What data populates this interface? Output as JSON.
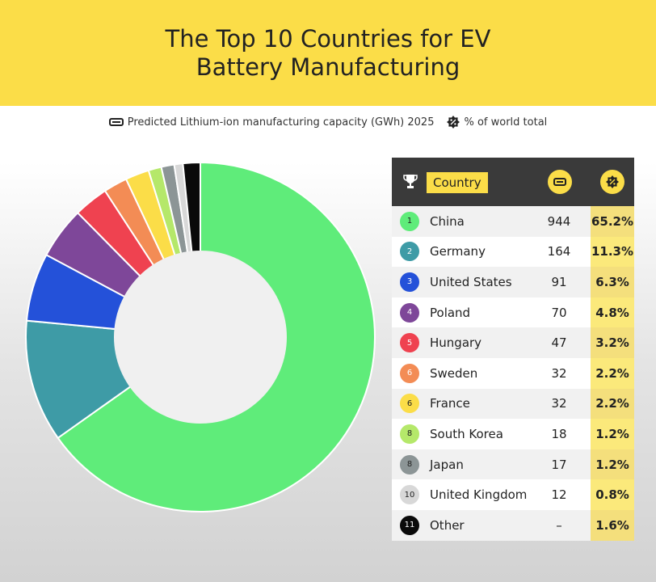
{
  "header": {
    "title": "The Top 10 Countries for EV Battery Manufacturing",
    "bg_color": "#fbdd48"
  },
  "legend": {
    "capacity_label": "Predicted Lithium-ion manufacturing capacity (GWh) 2025",
    "capacity_icon": "battery-icon",
    "share_label": "% of world total",
    "share_icon": "percent-badge-icon"
  },
  "table": {
    "header_rank_icon": "trophy-icon",
    "header_country": "Country",
    "header_capacity_icon": "battery-icon",
    "header_share_icon": "percent-badge-icon",
    "rows": [
      {
        "rank": "1",
        "country": "China",
        "capacity": "944",
        "share": "65.2%",
        "color": "#5fec7a"
      },
      {
        "rank": "2",
        "country": "Germany",
        "capacity": "164",
        "share": "11.3%",
        "color": "#3e9ba6"
      },
      {
        "rank": "3",
        "country": "United States",
        "capacity": "91",
        "share": "6.3%",
        "color": "#2451d9"
      },
      {
        "rank": "4",
        "country": "Poland",
        "capacity": "70",
        "share": "4.8%",
        "color": "#7e4799"
      },
      {
        "rank": "5",
        "country": "Hungary",
        "capacity": "47",
        "share": "3.2%",
        "color": "#ef4250"
      },
      {
        "rank": "6",
        "country": "Sweden",
        "capacity": "32",
        "share": "2.2%",
        "color": "#f38c55"
      },
      {
        "rank": "6",
        "country": "France",
        "capacity": "32",
        "share": "2.2%",
        "color": "#fbdd48"
      },
      {
        "rank": "8",
        "country": "South Korea",
        "capacity": "18",
        "share": "1.2%",
        "color": "#b5e86a"
      },
      {
        "rank": "8",
        "country": "Japan",
        "capacity": "17",
        "share": "1.2%",
        "color": "#8c9596"
      },
      {
        "rank": "10",
        "country": "United Kingdom",
        "capacity": "12",
        "share": "0.8%",
        "color": "#d8d8d8"
      },
      {
        "rank": "11",
        "country": "Other",
        "capacity": "–",
        "share": "1.6%",
        "color": "#0a0a0a"
      }
    ]
  },
  "chart_data": {
    "type": "pie",
    "title": "The Top 10 Countries for EV Battery Manufacturing",
    "donut": true,
    "categories": [
      "China",
      "Germany",
      "United States",
      "Poland",
      "Hungary",
      "Sweden",
      "France",
      "South Korea",
      "Japan",
      "United Kingdom",
      "Other"
    ],
    "values": [
      65.2,
      11.3,
      6.3,
      4.8,
      3.2,
      2.2,
      2.2,
      1.2,
      1.2,
      0.8,
      1.6
    ],
    "colors": [
      "#5fec7a",
      "#3e9ba6",
      "#2451d9",
      "#7e4799",
      "#ef4250",
      "#f38c55",
      "#fbdd48",
      "#b5e86a",
      "#8c9596",
      "#d8d8d8",
      "#0a0a0a"
    ]
  }
}
